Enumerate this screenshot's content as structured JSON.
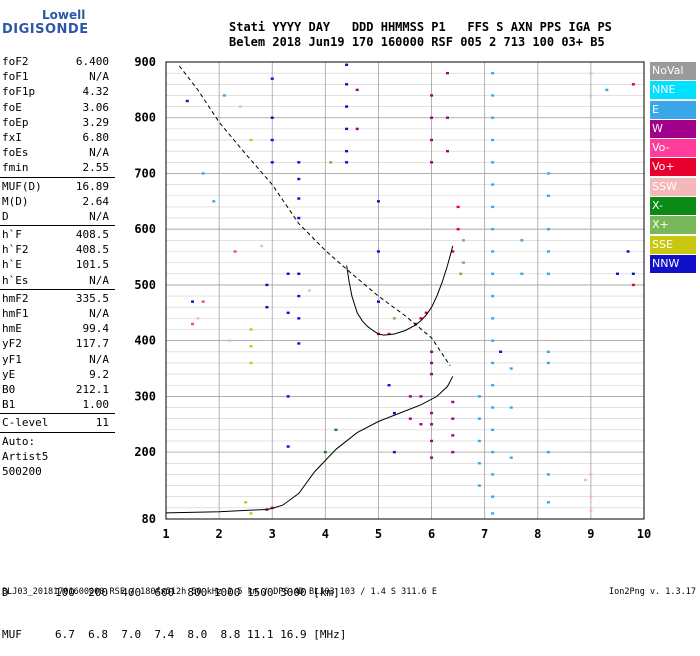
{
  "logo": {
    "line1": "Lowell",
    "line2": "DIGISONDE"
  },
  "header": {
    "labels": "Stati YYYY DAY   DDD HHMMSS P1   FFS S AXN PPS IGA PS",
    "values": "Belem 2018 Jun19 170 160000 RSF 005 2 713 100 03+ B5"
  },
  "params": [
    {
      "label": "foF2",
      "value": "6.400"
    },
    {
      "label": "foF1",
      "value": "N/A"
    },
    {
      "label": "foF1p",
      "value": "4.32"
    },
    {
      "label": "foE",
      "value": "3.06"
    },
    {
      "label": "foEp",
      "value": "3.29"
    },
    {
      "label": "fxI",
      "value": "6.80"
    },
    {
      "label": "foEs",
      "value": "N/A"
    },
    {
      "label": "fmin",
      "value": "2.55"
    },
    {
      "sep": true
    },
    {
      "label": "MUF(D)",
      "value": "16.89"
    },
    {
      "label": "M(D)",
      "value": "2.64"
    },
    {
      "label": "D",
      "value": "N/A"
    },
    {
      "sep": true
    },
    {
      "label": "h`F",
      "value": "408.5"
    },
    {
      "label": "h`F2",
      "value": "408.5"
    },
    {
      "label": "h`E",
      "value": "101.5"
    },
    {
      "label": "h`Es",
      "value": "N/A"
    },
    {
      "sep": true
    },
    {
      "label": "hmF2",
      "value": "335.5"
    },
    {
      "label": "hmF1",
      "value": "N/A"
    },
    {
      "label": "hmE",
      "value": "99.4"
    },
    {
      "label": "yF2",
      "value": "117.7"
    },
    {
      "label": "yF1",
      "value": "N/A"
    },
    {
      "label": "yE",
      "value": "9.2"
    },
    {
      "label": "B0",
      "value": "212.1"
    },
    {
      "label": "B1",
      "value": "1.00"
    },
    {
      "sep": true
    },
    {
      "label": "C-level",
      "value": "11"
    },
    {
      "sep": true
    },
    {
      "label": "Auto:",
      "value": ""
    },
    {
      "label": "Artist5",
      "value": ""
    },
    {
      "label": "500200",
      "value": ""
    }
  ],
  "legend": [
    {
      "label": "NoVal",
      "bg": "#9a9a9a",
      "fg": "#ffffff"
    },
    {
      "label": "NNE",
      "bg": "#00e0ff",
      "fg": "#ffffff"
    },
    {
      "label": "E",
      "bg": "#3aa8e8",
      "fg": "#ffffff"
    },
    {
      "label": "W",
      "bg": "#a0008a",
      "fg": "#ffffff"
    },
    {
      "label": "Vo-",
      "bg": "#ff3c9a",
      "fg": "#ffffff"
    },
    {
      "label": "Vo+",
      "bg": "#e8002c",
      "fg": "#ffffff"
    },
    {
      "label": "SSW",
      "bg": "#f4b8b8",
      "fg": "#ffffff"
    },
    {
      "label": "X-",
      "bg": "#0a8a14",
      "fg": "#ffffff"
    },
    {
      "label": "X+",
      "bg": "#78b858",
      "fg": "#ffffff"
    },
    {
      "label": "SSE",
      "bg": "#c8c810",
      "fg": "#ffffff"
    },
    {
      "label": "NNW",
      "bg": "#1010c8",
      "fg": "#ffffff"
    }
  ],
  "muf_table": {
    "d_label": "D",
    "muf_label": "MUF",
    "distances": [
      "100",
      "200",
      "400",
      "600",
      "800",
      "1000",
      "1500",
      "3000"
    ],
    "unit_d": "[km]",
    "mufs": [
      "6.7",
      "6.8",
      "7.0",
      "7.4",
      "8.0",
      "8.8",
      "11.1",
      "16.9"
    ],
    "unit_muf": "[MHz]"
  },
  "footer": "BLJ03_20181701600000.RSF / 180fx512h 50 kHz 2.5 km / DPS-4D BLJ03 103 / 1.4 S 311.6 E",
  "version": "Ion2Png v. 1.3.17",
  "chart_data": {
    "type": "scatter",
    "xlim": [
      1,
      10
    ],
    "ylim": [
      80,
      900
    ],
    "x_ticks": [
      1,
      2,
      3,
      4,
      5,
      6,
      7,
      8,
      9,
      10
    ],
    "y_ticks": [
      80,
      200,
      300,
      400,
      500,
      600,
      700,
      800,
      900
    ],
    "grid": true,
    "profile_curve": {
      "x": [
        1.0,
        2.0,
        2.6,
        2.9,
        3.0,
        3.2,
        3.5,
        3.8,
        4.2,
        4.6,
        5.0,
        5.4,
        5.8,
        6.1,
        6.3,
        6.4
      ],
      "y": [
        91,
        93,
        96,
        97,
        99,
        105,
        126,
        165,
        205,
        235,
        255,
        270,
        285,
        300,
        318,
        336
      ]
    },
    "muf_curve": {
      "x": [
        1.25,
        1.6,
        2.0,
        2.5,
        3.0,
        3.5,
        4.0,
        4.5,
        5.0,
        5.5,
        6.0,
        6.35
      ],
      "y": [
        893,
        850,
        792,
        735,
        680,
        610,
        562,
        520,
        480,
        445,
        405,
        355
      ]
    },
    "trace_o": {
      "x": [
        4.4,
        4.45,
        4.5,
        4.6,
        4.7,
        4.8,
        4.9,
        5.0,
        5.1,
        5.3,
        5.5,
        5.7,
        5.8,
        5.9,
        6.0,
        6.1,
        6.2,
        6.3,
        6.4
      ],
      "y": [
        535,
        505,
        480,
        450,
        435,
        425,
        418,
        412,
        410,
        412,
        418,
        428,
        436,
        446,
        460,
        480,
        505,
        535,
        570
      ]
    },
    "echo_points": [
      {
        "x": 4.4,
        "y": 895,
        "color": "NNW"
      },
      {
        "x": 4.4,
        "y": 860,
        "color": "NNW"
      },
      {
        "x": 4.4,
        "y": 820,
        "color": "NNW"
      },
      {
        "x": 4.4,
        "y": 780,
        "color": "NNW"
      },
      {
        "x": 4.4,
        "y": 740,
        "color": "NNW"
      },
      {
        "x": 4.4,
        "y": 720,
        "color": "NNW"
      },
      {
        "x": 3.5,
        "y": 720,
        "color": "NNW"
      },
      {
        "x": 3.5,
        "y": 690,
        "color": "NNW"
      },
      {
        "x": 3.5,
        "y": 655,
        "color": "NNW"
      },
      {
        "x": 3.5,
        "y": 620,
        "color": "NNW"
      },
      {
        "x": 3.5,
        "y": 520,
        "color": "NNW"
      },
      {
        "x": 3.5,
        "y": 480,
        "color": "NNW"
      },
      {
        "x": 3.5,
        "y": 440,
        "color": "NNW"
      },
      {
        "x": 3.5,
        "y": 395,
        "color": "NNW"
      },
      {
        "x": 3.0,
        "y": 800,
        "color": "NNW"
      },
      {
        "x": 3.0,
        "y": 760,
        "color": "NNW"
      },
      {
        "x": 3.0,
        "y": 720,
        "color": "NNW"
      },
      {
        "x": 2.9,
        "y": 500,
        "color": "NNW"
      },
      {
        "x": 2.9,
        "y": 460,
        "color": "NNW"
      },
      {
        "x": 3.3,
        "y": 520,
        "color": "NNW"
      },
      {
        "x": 3.3,
        "y": 450,
        "color": "NNW"
      },
      {
        "x": 3.3,
        "y": 300,
        "color": "NNW"
      },
      {
        "x": 3.3,
        "y": 210,
        "color": "NNW"
      },
      {
        "x": 3.0,
        "y": 870,
        "color": "NNW"
      },
      {
        "x": 5.0,
        "y": 650,
        "color": "NNW"
      },
      {
        "x": 5.0,
        "y": 560,
        "color": "NNW"
      },
      {
        "x": 5.0,
        "y": 470,
        "color": "NNW"
      },
      {
        "x": 5.2,
        "y": 320,
        "color": "NNW"
      },
      {
        "x": 5.3,
        "y": 270,
        "color": "NNW"
      },
      {
        "x": 5.3,
        "y": 200,
        "color": "NNW"
      },
      {
        "x": 6.0,
        "y": 840,
        "color": "W"
      },
      {
        "x": 6.0,
        "y": 800,
        "color": "W"
      },
      {
        "x": 6.0,
        "y": 760,
        "color": "W"
      },
      {
        "x": 6.0,
        "y": 720,
        "color": "W"
      },
      {
        "x": 6.0,
        "y": 380,
        "color": "W"
      },
      {
        "x": 6.0,
        "y": 360,
        "color": "W"
      },
      {
        "x": 6.0,
        "y": 340,
        "color": "W"
      },
      {
        "x": 6.0,
        "y": 270,
        "color": "W"
      },
      {
        "x": 6.0,
        "y": 250,
        "color": "W"
      },
      {
        "x": 6.0,
        "y": 220,
        "color": "W"
      },
      {
        "x": 6.0,
        "y": 190,
        "color": "W"
      },
      {
        "x": 6.3,
        "y": 880,
        "color": "W"
      },
      {
        "x": 6.3,
        "y": 800,
        "color": "W"
      },
      {
        "x": 6.3,
        "y": 740,
        "color": "W"
      },
      {
        "x": 6.4,
        "y": 290,
        "color": "W"
      },
      {
        "x": 6.4,
        "y": 260,
        "color": "W"
      },
      {
        "x": 6.4,
        "y": 230,
        "color": "W"
      },
      {
        "x": 6.4,
        "y": 200,
        "color": "W"
      },
      {
        "x": 4.6,
        "y": 850,
        "color": "W"
      },
      {
        "x": 4.6,
        "y": 780,
        "color": "W"
      },
      {
        "x": 5.6,
        "y": 300,
        "color": "W"
      },
      {
        "x": 5.6,
        "y": 260,
        "color": "W"
      },
      {
        "x": 5.8,
        "y": 300,
        "color": "W"
      },
      {
        "x": 5.8,
        "y": 250,
        "color": "W"
      },
      {
        "x": 7.15,
        "y": 880,
        "color": "E"
      },
      {
        "x": 7.15,
        "y": 840,
        "color": "E"
      },
      {
        "x": 7.15,
        "y": 800,
        "color": "E"
      },
      {
        "x": 7.15,
        "y": 760,
        "color": "E"
      },
      {
        "x": 7.15,
        "y": 720,
        "color": "E"
      },
      {
        "x": 7.15,
        "y": 680,
        "color": "E"
      },
      {
        "x": 7.15,
        "y": 640,
        "color": "E"
      },
      {
        "x": 7.15,
        "y": 600,
        "color": "E"
      },
      {
        "x": 7.15,
        "y": 560,
        "color": "E"
      },
      {
        "x": 7.15,
        "y": 520,
        "color": "E"
      },
      {
        "x": 7.15,
        "y": 480,
        "color": "E"
      },
      {
        "x": 7.15,
        "y": 440,
        "color": "E"
      },
      {
        "x": 7.15,
        "y": 400,
        "color": "E"
      },
      {
        "x": 7.15,
        "y": 360,
        "color": "E"
      },
      {
        "x": 7.15,
        "y": 320,
        "color": "E"
      },
      {
        "x": 7.15,
        "y": 280,
        "color": "E"
      },
      {
        "x": 7.15,
        "y": 240,
        "color": "E"
      },
      {
        "x": 7.15,
        "y": 200,
        "color": "E"
      },
      {
        "x": 7.15,
        "y": 160,
        "color": "E"
      },
      {
        "x": 7.15,
        "y": 120,
        "color": "E"
      },
      {
        "x": 7.15,
        "y": 90,
        "color": "E"
      },
      {
        "x": 6.9,
        "y": 300,
        "color": "E"
      },
      {
        "x": 6.9,
        "y": 260,
        "color": "E"
      },
      {
        "x": 6.9,
        "y": 220,
        "color": "E"
      },
      {
        "x": 6.9,
        "y": 180,
        "color": "E"
      },
      {
        "x": 6.9,
        "y": 140,
        "color": "E"
      },
      {
        "x": 8.2,
        "y": 700,
        "color": "E"
      },
      {
        "x": 8.2,
        "y": 660,
        "color": "E"
      },
      {
        "x": 8.2,
        "y": 600,
        "color": "E"
      },
      {
        "x": 8.2,
        "y": 560,
        "color": "E"
      },
      {
        "x": 8.2,
        "y": 520,
        "color": "E"
      },
      {
        "x": 8.2,
        "y": 380,
        "color": "E"
      },
      {
        "x": 8.2,
        "y": 360,
        "color": "E"
      },
      {
        "x": 8.2,
        "y": 200,
        "color": "E"
      },
      {
        "x": 8.2,
        "y": 160,
        "color": "E"
      },
      {
        "x": 8.2,
        "y": 110,
        "color": "E"
      },
      {
        "x": 7.7,
        "y": 520,
        "color": "E"
      },
      {
        "x": 7.7,
        "y": 580,
        "color": "E"
      },
      {
        "x": 1.7,
        "y": 700,
        "color": "E"
      },
      {
        "x": 1.9,
        "y": 650,
        "color": "E"
      },
      {
        "x": 2.1,
        "y": 840,
        "color": "E"
      },
      {
        "x": 7.5,
        "y": 350,
        "color": "E"
      },
      {
        "x": 7.5,
        "y": 280,
        "color": "E"
      },
      {
        "x": 7.5,
        "y": 190,
        "color": "E"
      },
      {
        "x": 9.3,
        "y": 850,
        "color": "E"
      },
      {
        "x": 6.4,
        "y": 560,
        "color": "Vo+"
      },
      {
        "x": 6.5,
        "y": 600,
        "color": "Vo+"
      },
      {
        "x": 6.5,
        "y": 640,
        "color": "Vo+"
      },
      {
        "x": 5.9,
        "y": 450,
        "color": "Vo+"
      },
      {
        "x": 5.8,
        "y": 440,
        "color": "Vo+"
      },
      {
        "x": 5.7,
        "y": 430,
        "color": "Vo+"
      },
      {
        "x": 5.2,
        "y": 412,
        "color": "Vo+"
      },
      {
        "x": 5.0,
        "y": 412,
        "color": "Vo+"
      },
      {
        "x": 3.0,
        "y": 100,
        "color": "Vo+"
      },
      {
        "x": 2.9,
        "y": 97,
        "color": "Vo+"
      },
      {
        "x": 9.8,
        "y": 860,
        "color": "Vo+"
      },
      {
        "x": 9.8,
        "y": 500,
        "color": "Vo+"
      },
      {
        "x": 6.6,
        "y": 580,
        "color": "X+"
      },
      {
        "x": 6.6,
        "y": 540,
        "color": "X+"
      },
      {
        "x": 6.55,
        "y": 520,
        "color": "X+"
      },
      {
        "x": 5.3,
        "y": 440,
        "color": "X+"
      },
      {
        "x": 4.1,
        "y": 720,
        "color": "X+"
      },
      {
        "x": 9.0,
        "y": 880,
        "color": "SSW"
      },
      {
        "x": 9.0,
        "y": 840,
        "color": "SSW"
      },
      {
        "x": 9.0,
        "y": 800,
        "color": "SSW"
      },
      {
        "x": 9.0,
        "y": 760,
        "color": "SSW"
      },
      {
        "x": 9.0,
        "y": 720,
        "color": "SSW"
      },
      {
        "x": 9.0,
        "y": 680,
        "color": "SSW"
      },
      {
        "x": 9.0,
        "y": 200,
        "color": "SSW"
      },
      {
        "x": 9.0,
        "y": 160,
        "color": "SSW"
      },
      {
        "x": 9.0,
        "y": 120,
        "color": "SSW"
      },
      {
        "x": 9.0,
        "y": 95,
        "color": "SSW"
      },
      {
        "x": 8.9,
        "y": 150,
        "color": "SSW"
      },
      {
        "x": 2.4,
        "y": 820,
        "color": "SSW"
      },
      {
        "x": 2.8,
        "y": 570,
        "color": "SSW"
      },
      {
        "x": 2.2,
        "y": 400,
        "color": "SSW"
      },
      {
        "x": 1.6,
        "y": 440,
        "color": "SSW"
      },
      {
        "x": 3.7,
        "y": 490,
        "color": "SSW"
      },
      {
        "x": 2.6,
        "y": 420,
        "color": "SSE"
      },
      {
        "x": 2.6,
        "y": 390,
        "color": "SSE"
      },
      {
        "x": 2.6,
        "y": 360,
        "color": "SSE"
      },
      {
        "x": 2.6,
        "y": 760,
        "color": "SSE"
      },
      {
        "x": 2.5,
        "y": 110,
        "color": "SSE"
      },
      {
        "x": 2.6,
        "y": 90,
        "color": "SSE"
      },
      {
        "x": 1.5,
        "y": 430,
        "color": "Vo-"
      },
      {
        "x": 1.7,
        "y": 470,
        "color": "Vo-"
      },
      {
        "x": 2.3,
        "y": 560,
        "color": "Vo-"
      },
      {
        "x": 4.2,
        "y": 240,
        "color": "X-"
      },
      {
        "x": 4.0,
        "y": 200,
        "color": "X-"
      },
      {
        "x": 1.4,
        "y": 830,
        "color": "NNW"
      },
      {
        "x": 1.5,
        "y": 470,
        "color": "NNW"
      },
      {
        "x": 7.3,
        "y": 380,
        "color": "NNW"
      },
      {
        "x": 9.5,
        "y": 520,
        "color": "NNW"
      },
      {
        "x": 9.8,
        "y": 520,
        "color": "NNW"
      },
      {
        "x": 9.7,
        "y": 560,
        "color": "NNW"
      }
    ]
  }
}
